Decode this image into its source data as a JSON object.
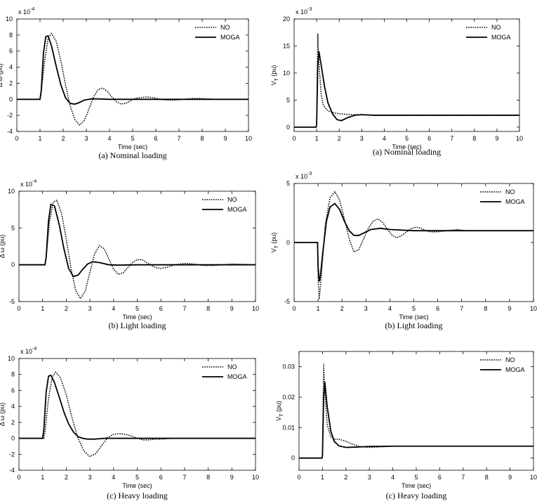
{
  "chart_data": [
    {
      "id": "p1",
      "type": "line",
      "caption": "(a) Nominal loading",
      "xlabel": "Time (sec)",
      "ylabel": "Δ ω (pu)",
      "exponent_label": "x 10",
      "exponent_sup": "-4",
      "xlim": [
        0,
        10
      ],
      "ylim": [
        -4,
        10
      ],
      "xticks": [
        0,
        1,
        2,
        3,
        4,
        5,
        6,
        7,
        8,
        9,
        10
      ],
      "yticks": [
        -4,
        -2,
        0,
        2,
        4,
        6,
        8,
        10
      ],
      "legend": [
        "NO",
        "MOGA"
      ],
      "legend_position": "top-right",
      "series": [
        {
          "name": "NO",
          "style": "dotted",
          "x": [
            0,
            1.0,
            1.05,
            1.2,
            1.35,
            1.5,
            1.7,
            1.9,
            2.1,
            2.3,
            2.5,
            2.7,
            2.9,
            3.1,
            3.3,
            3.5,
            3.7,
            3.9,
            4.1,
            4.3,
            4.5,
            4.7,
            4.9,
            5.1,
            5.3,
            5.6,
            5.9,
            6.2,
            6.5,
            6.8,
            7.2,
            7.6,
            8.0,
            8.5,
            9.0,
            10
          ],
          "y": [
            0,
            0,
            0.8,
            4.8,
            7.6,
            8.2,
            7.2,
            4.8,
            1.8,
            -0.8,
            -2.5,
            -3.2,
            -2.7,
            -1.3,
            0.2,
            1.2,
            1.4,
            1.0,
            0.3,
            -0.3,
            -0.6,
            -0.5,
            -0.2,
            0.1,
            0.2,
            0.3,
            0.2,
            0.0,
            -0.1,
            -0.1,
            0.0,
            0.1,
            0.1,
            0.0,
            0.0,
            0.0
          ]
        },
        {
          "name": "MOGA",
          "style": "solid",
          "x": [
            0,
            1.0,
            1.05,
            1.15,
            1.25,
            1.35,
            1.5,
            1.7,
            1.9,
            2.1,
            2.3,
            2.5,
            2.7,
            2.9,
            3.2,
            3.5,
            4.0,
            5.0,
            6.0,
            10
          ],
          "y": [
            0,
            0,
            1.0,
            5.8,
            7.8,
            7.9,
            6.6,
            4.1,
            1.8,
            0.2,
            -0.5,
            -0.6,
            -0.4,
            -0.1,
            0.05,
            0.05,
            0.0,
            0.0,
            0.0,
            0.0
          ]
        }
      ]
    },
    {
      "id": "p2",
      "type": "line",
      "caption": "(a) Nominal loading",
      "xlabel": "Time (sec)",
      "ylabel": "V",
      "ylabel_sub": "T",
      "ylabel_unit": "(pu)",
      "exponent_label": "x 10",
      "exponent_sup": "-3",
      "xlim": [
        0,
        10
      ],
      "ylim": [
        -0.8,
        20
      ],
      "xticks": [
        0,
        1,
        2,
        3,
        4,
        5,
        6,
        7,
        8,
        9,
        10
      ],
      "yticks": [
        0,
        5,
        10,
        15,
        20
      ],
      "legend": [
        "NO",
        "MOGA"
      ],
      "legend_position": "top-right",
      "series": [
        {
          "name": "NO",
          "style": "dotted",
          "x": [
            0,
            0.98,
            1.0,
            1.05,
            1.1,
            1.2,
            1.3,
            1.5,
            1.8,
            2.2,
            2.6,
            3.0,
            3.5,
            4.0,
            5.0,
            6.0,
            7.0,
            8.0,
            9.0,
            10
          ],
          "y": [
            0,
            0,
            0.5,
            17.3,
            12.0,
            6.0,
            4.0,
            3.0,
            2.6,
            2.4,
            2.3,
            2.3,
            2.2,
            2.2,
            2.2,
            2.2,
            2.2,
            2.2,
            2.2,
            2.2
          ]
        },
        {
          "name": "MOGA",
          "style": "solid",
          "x": [
            0,
            0.98,
            1.0,
            1.05,
            1.1,
            1.2,
            1.35,
            1.5,
            1.7,
            1.9,
            2.1,
            2.4,
            2.7,
            3.0,
            3.5,
            4.0,
            5.0,
            6.0,
            8.0,
            10
          ],
          "y": [
            0,
            0,
            0.5,
            11.5,
            14.0,
            11.5,
            7.5,
            4.5,
            2.5,
            1.4,
            1.2,
            1.8,
            2.2,
            2.3,
            2.2,
            2.2,
            2.2,
            2.2,
            2.2,
            2.2
          ]
        }
      ]
    },
    {
      "id": "p3",
      "type": "line",
      "caption": "(b) Light loading",
      "xlabel": "Time (sec)",
      "ylabel": "Δ ω (pu)",
      "exponent_label": "x 10",
      "exponent_sup": "-4",
      "xlim": [
        0,
        10
      ],
      "ylim": [
        -5,
        10
      ],
      "xticks": [
        0,
        1,
        2,
        3,
        4,
        5,
        6,
        7,
        8,
        9,
        10
      ],
      "yticks": [
        -5,
        0,
        5,
        10
      ],
      "legend": [
        "NO",
        "MOGA"
      ],
      "legend_position": "top-right",
      "series": [
        {
          "name": "NO",
          "style": "dotted",
          "x": [
            0,
            1.1,
            1.15,
            1.3,
            1.45,
            1.6,
            1.8,
            2.0,
            2.2,
            2.4,
            2.6,
            2.8,
            3.0,
            3.2,
            3.4,
            3.6,
            3.8,
            4.0,
            4.2,
            4.4,
            4.6,
            4.8,
            5.0,
            5.2,
            5.4,
            5.6,
            5.8,
            6.0,
            6.3,
            6.6,
            7.0,
            7.4,
            7.8,
            8.2,
            8.6,
            9.0,
            10
          ],
          "y": [
            0,
            0,
            1.0,
            6.0,
            8.5,
            8.8,
            7.0,
            3.5,
            -0.5,
            -3.5,
            -4.6,
            -3.6,
            -1.0,
            1.5,
            2.6,
            2.2,
            0.8,
            -0.6,
            -1.3,
            -1.1,
            -0.4,
            0.3,
            0.7,
            0.7,
            0.3,
            -0.1,
            -0.4,
            -0.5,
            -0.3,
            0.0,
            0.2,
            0.1,
            -0.1,
            -0.1,
            0.0,
            0.1,
            0.0
          ]
        },
        {
          "name": "MOGA",
          "style": "solid",
          "x": [
            0,
            1.1,
            1.15,
            1.25,
            1.35,
            1.5,
            1.7,
            1.9,
            2.1,
            2.3,
            2.5,
            2.7,
            2.9,
            3.1,
            3.4,
            3.8,
            4.2,
            5.0,
            6.0,
            10
          ],
          "y": [
            0,
            0,
            1.0,
            6.0,
            8.2,
            8.0,
            5.5,
            2.2,
            -0.5,
            -1.6,
            -1.4,
            -0.6,
            0.1,
            0.4,
            0.3,
            0.0,
            -0.05,
            0.0,
            0.0,
            0.0
          ]
        }
      ]
    },
    {
      "id": "p4",
      "type": "line",
      "caption": "(b) Light loading",
      "xlabel": "Time (sec)",
      "ylabel": "V",
      "ylabel_sub": "T",
      "ylabel_unit": "(pu)",
      "exponent_label": "x 10",
      "exponent_sup": "-3",
      "xlim": [
        0,
        10
      ],
      "ylim": [
        -5,
        5
      ],
      "xticks": [
        0,
        1,
        2,
        3,
        4,
        5,
        6,
        7,
        8,
        9,
        10
      ],
      "yticks": [
        -5,
        0,
        5
      ],
      "legend": [
        "NO",
        "MOGA"
      ],
      "legend_position": "top-right",
      "series": [
        {
          "name": "NO",
          "style": "dotted",
          "x": [
            0,
            0.98,
            1.0,
            1.05,
            1.15,
            1.3,
            1.5,
            1.7,
            1.9,
            2.1,
            2.3,
            2.5,
            2.7,
            2.9,
            3.1,
            3.3,
            3.5,
            3.7,
            3.9,
            4.1,
            4.3,
            4.5,
            4.7,
            4.9,
            5.1,
            5.3,
            5.5,
            5.7,
            6.0,
            6.4,
            6.8,
            7.2,
            7.6,
            8.0,
            9.0,
            10
          ],
          "y": [
            0,
            0,
            -3.0,
            -4.8,
            -2.5,
            1.5,
            3.8,
            4.3,
            3.6,
            2.0,
            0.3,
            -0.8,
            -0.6,
            0.3,
            1.2,
            1.8,
            2.0,
            1.7,
            1.1,
            0.6,
            0.4,
            0.6,
            0.9,
            1.2,
            1.3,
            1.2,
            1.0,
            0.9,
            0.9,
            1.0,
            1.1,
            1.0,
            1.0,
            1.0,
            1.0,
            1.0
          ]
        },
        {
          "name": "MOGA",
          "style": "solid",
          "x": [
            0,
            0.98,
            1.0,
            1.05,
            1.1,
            1.2,
            1.35,
            1.5,
            1.7,
            1.9,
            2.1,
            2.3,
            2.5,
            2.7,
            2.9,
            3.2,
            3.6,
            4.0,
            5.0,
            6.0,
            8.0,
            10
          ],
          "y": [
            0,
            0,
            -2.0,
            -3.3,
            -2.8,
            -0.8,
            1.8,
            3.0,
            3.3,
            2.8,
            1.8,
            1.0,
            0.6,
            0.6,
            0.8,
            1.1,
            1.2,
            1.1,
            1.0,
            1.0,
            1.0,
            1.0
          ]
        }
      ]
    },
    {
      "id": "p5",
      "type": "line",
      "caption": "(c) Heavy loading",
      "xlabel": "Time (sec)",
      "ylabel": "Δ ω (pu)",
      "exponent_label": "x 10",
      "exponent_sup": "-4",
      "xlim": [
        0,
        10
      ],
      "ylim": [
        -4,
        10
      ],
      "xticks": [
        0,
        1,
        2,
        3,
        4,
        5,
        6,
        7,
        8,
        9,
        10
      ],
      "yticks": [
        -4,
        -2,
        0,
        2,
        4,
        6,
        8,
        10
      ],
      "legend": [
        "NO",
        "MOGA"
      ],
      "legend_position": "top-right",
      "series": [
        {
          "name": "NO",
          "style": "dotted",
          "x": [
            0,
            1.05,
            1.1,
            1.25,
            1.4,
            1.55,
            1.75,
            2.0,
            2.25,
            2.5,
            2.75,
            3.0,
            3.25,
            3.5,
            3.75,
            4.0,
            4.25,
            4.5,
            4.75,
            5.0,
            5.25,
            5.5,
            5.75,
            6.0,
            6.5,
            7.0,
            7.5,
            8.0,
            9.0,
            10
          ],
          "y": [
            0,
            0,
            0.8,
            5.0,
            7.6,
            8.3,
            7.6,
            5.5,
            2.5,
            0.0,
            -1.6,
            -2.3,
            -1.9,
            -0.9,
            0.1,
            0.5,
            0.6,
            0.5,
            0.3,
            0.0,
            -0.2,
            -0.2,
            -0.1,
            -0.1,
            0.0,
            0.0,
            0.0,
            0.0,
            0.0,
            0.0
          ]
        },
        {
          "name": "MOGA",
          "style": "solid",
          "x": [
            0,
            1.0,
            1.05,
            1.15,
            1.25,
            1.35,
            1.5,
            1.7,
            1.9,
            2.1,
            2.3,
            2.5,
            2.7,
            2.9,
            3.2,
            3.6,
            4.0,
            5.0,
            6.0,
            10
          ],
          "y": [
            0,
            0,
            1.0,
            5.8,
            7.8,
            7.9,
            7.0,
            5.2,
            3.3,
            1.8,
            0.8,
            0.2,
            0.0,
            -0.1,
            -0.1,
            0.0,
            0.0,
            0.0,
            0.0,
            0.0
          ]
        }
      ]
    },
    {
      "id": "p6",
      "type": "line",
      "caption": "(c) Heavy loading",
      "xlabel": "Time (sec)",
      "ylabel": "V",
      "ylabel_sub": "T",
      "ylabel_unit": "(pu)",
      "exponent_label": "",
      "exponent_sup": "",
      "xlim": [
        0,
        10
      ],
      "ylim": [
        -0.004,
        0.035
      ],
      "xticks": [
        0,
        1,
        2,
        3,
        4,
        5,
        6,
        7,
        8,
        9,
        10
      ],
      "yticks": [
        0,
        0.01,
        0.02,
        0.03
      ],
      "legend": [
        "NO",
        "MOGA"
      ],
      "legend_position": "top-right",
      "series": [
        {
          "name": "NO",
          "style": "dotted",
          "x": [
            0,
            0.98,
            1.0,
            1.05,
            1.1,
            1.2,
            1.35,
            1.5,
            1.7,
            2.0,
            2.3,
            2.6,
            3.0,
            3.5,
            4.0,
            5.0,
            6.0,
            7.0,
            8.0,
            9.0,
            10
          ],
          "y": [
            0,
            0,
            0.001,
            0.031,
            0.022,
            0.011,
            0.007,
            0.0062,
            0.0062,
            0.0055,
            0.0045,
            0.0038,
            0.0035,
            0.0037,
            0.0039,
            0.0039,
            0.0039,
            0.0039,
            0.0039,
            0.0039,
            0.0039
          ]
        },
        {
          "name": "MOGA",
          "style": "solid",
          "x": [
            0,
            0.98,
            1.0,
            1.05,
            1.1,
            1.2,
            1.35,
            1.5,
            1.7,
            2.0,
            2.4,
            3.0,
            4.0,
            5.0,
            6.0,
            8.0,
            10
          ],
          "y": [
            0,
            0,
            0.001,
            0.02,
            0.025,
            0.017,
            0.009,
            0.0055,
            0.004,
            0.0035,
            0.0036,
            0.0038,
            0.0039,
            0.0039,
            0.0039,
            0.0039,
            0.0039
          ]
        }
      ]
    }
  ]
}
